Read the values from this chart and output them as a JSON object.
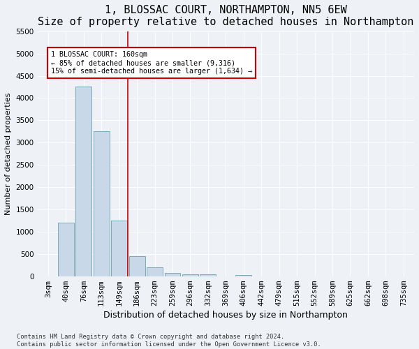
{
  "title": "1, BLOSSAC COURT, NORTHAMPTON, NN5 6EW",
  "subtitle": "Size of property relative to detached houses in Northampton",
  "xlabel": "Distribution of detached houses by size in Northampton",
  "ylabel": "Number of detached properties",
  "categories": [
    "3sqm",
    "40sqm",
    "76sqm",
    "113sqm",
    "149sqm",
    "186sqm",
    "223sqm",
    "259sqm",
    "296sqm",
    "332sqm",
    "369sqm",
    "406sqm",
    "442sqm",
    "479sqm",
    "515sqm",
    "552sqm",
    "589sqm",
    "625sqm",
    "662sqm",
    "698sqm",
    "735sqm"
  ],
  "values": [
    0,
    1200,
    4250,
    3250,
    1250,
    450,
    200,
    80,
    50,
    40,
    0,
    30,
    0,
    0,
    0,
    0,
    0,
    0,
    0,
    0,
    0
  ],
  "bar_color": "#c8d8e8",
  "bar_edgecolor": "#7aaabb",
  "vline_x": 4.5,
  "vline_color": "#cc0000",
  "annotation_text": "1 BLOSSAC COURT: 160sqm\n← 85% of detached houses are smaller (9,316)\n15% of semi-detached houses are larger (1,634) →",
  "annotation_box_color": "#cc0000",
  "ylim": [
    0,
    5500
  ],
  "yticks": [
    0,
    500,
    1000,
    1500,
    2000,
    2500,
    3000,
    3500,
    4000,
    4500,
    5000,
    5500
  ],
  "title_fontsize": 11,
  "subtitle_fontsize": 9.5,
  "xlabel_fontsize": 9,
  "ylabel_fontsize": 8,
  "tick_fontsize": 7.5,
  "footer_text": "Contains HM Land Registry data © Crown copyright and database right 2024.\nContains public sector information licensed under the Open Government Licence v3.0.",
  "background_color": "#eef2f7",
  "plot_background": "#eef2f7",
  "grid_color": "#ffffff"
}
